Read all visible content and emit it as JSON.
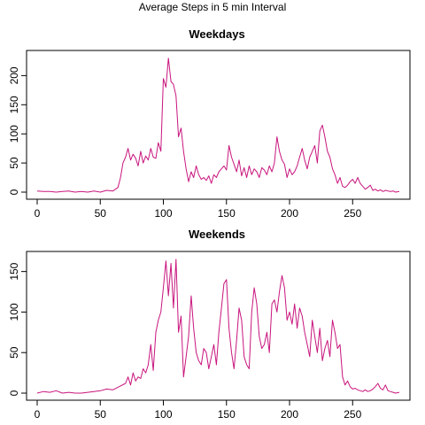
{
  "figure": {
    "title": "Average Steps in 5 min Interval",
    "line_color": "#C8157D"
  },
  "chart_data": [
    {
      "type": "line",
      "title": "Weekdays",
      "xlabel": "",
      "ylabel": "",
      "xlim": [
        0,
        287
      ],
      "ylim": [
        0,
        231
      ],
      "xticks": [
        0,
        50,
        100,
        150,
        200,
        250
      ],
      "yticks": [
        0,
        50,
        100,
        150,
        200
      ],
      "grid": false,
      "series": [
        {
          "x": [
            0,
            5,
            10,
            15,
            20,
            25,
            30,
            35,
            40,
            45,
            50,
            55,
            60,
            62,
            64,
            66,
            68,
            70,
            72,
            74,
            76,
            78,
            80,
            82,
            84,
            86,
            88,
            90,
            92,
            94,
            96,
            98,
            100,
            102,
            104,
            106,
            108,
            110,
            112,
            114,
            116,
            118,
            120,
            122,
            124,
            126,
            128,
            130,
            132,
            134,
            136,
            138,
            140,
            142,
            144,
            146,
            148,
            150,
            152,
            154,
            156,
            158,
            160,
            162,
            164,
            166,
            168,
            170,
            172,
            174,
            176,
            178,
            180,
            182,
            184,
            186,
            188,
            190,
            192,
            194,
            196,
            198,
            200,
            202,
            204,
            206,
            208,
            210,
            212,
            214,
            216,
            218,
            220,
            222,
            224,
            226,
            228,
            230,
            232,
            234,
            236,
            238,
            240,
            242,
            244,
            246,
            248,
            250,
            252,
            254,
            256,
            258,
            260,
            262,
            264,
            266,
            268,
            270,
            272,
            274,
            276,
            278,
            280,
            282,
            284,
            287
          ],
          "y": [
            2,
            1,
            1,
            0,
            1,
            2,
            0,
            1,
            0,
            2,
            0,
            3,
            2,
            5,
            8,
            25,
            50,
            60,
            75,
            55,
            65,
            58,
            45,
            70,
            50,
            62,
            55,
            75,
            60,
            58,
            85,
            70,
            195,
            180,
            230,
            190,
            185,
            165,
            95,
            110,
            70,
            40,
            18,
            35,
            25,
            45,
            30,
            22,
            25,
            20,
            28,
            15,
            30,
            25,
            35,
            40,
            45,
            38,
            80,
            60,
            48,
            35,
            55,
            28,
            42,
            25,
            45,
            30,
            40,
            35,
            25,
            42,
            38,
            30,
            45,
            35,
            50,
            95,
            70,
            55,
            48,
            25,
            40,
            30,
            35,
            45,
            60,
            75,
            55,
            40,
            60,
            70,
            80,
            50,
            105,
            115,
            95,
            70,
            60,
            40,
            30,
            15,
            25,
            10,
            8,
            12,
            18,
            22,
            15,
            25,
            15,
            10,
            5,
            8,
            12,
            3,
            5,
            2,
            4,
            1,
            3,
            2,
            1,
            2,
            0,
            1
          ]
        }
      ]
    },
    {
      "type": "line",
      "title": "Weekends",
      "xlabel": "",
      "ylabel": "",
      "xlim": [
        0,
        287
      ],
      "ylim": [
        0,
        166
      ],
      "xticks": [
        0,
        50,
        100,
        150,
        200,
        250
      ],
      "yticks": [
        0,
        50,
        100,
        150
      ],
      "grid": false,
      "series": [
        {
          "x": [
            0,
            5,
            10,
            15,
            20,
            25,
            30,
            35,
            40,
            45,
            50,
            55,
            60,
            65,
            70,
            72,
            74,
            76,
            78,
            80,
            82,
            84,
            86,
            88,
            90,
            92,
            94,
            96,
            98,
            100,
            102,
            104,
            106,
            108,
            110,
            112,
            114,
            116,
            118,
            120,
            122,
            124,
            126,
            128,
            130,
            132,
            134,
            136,
            138,
            140,
            142,
            144,
            146,
            148,
            150,
            152,
            154,
            156,
            158,
            160,
            162,
            164,
            166,
            168,
            170,
            172,
            174,
            176,
            178,
            180,
            182,
            184,
            186,
            188,
            190,
            192,
            194,
            196,
            198,
            200,
            202,
            204,
            206,
            208,
            210,
            212,
            214,
            216,
            218,
            220,
            222,
            224,
            226,
            228,
            230,
            232,
            234,
            236,
            238,
            240,
            242,
            244,
            246,
            248,
            250,
            252,
            254,
            256,
            258,
            260,
            262,
            264,
            266,
            268,
            270,
            272,
            274,
            276,
            278,
            280,
            282,
            284,
            287
          ],
          "y": [
            0,
            2,
            1,
            3,
            0,
            1,
            0,
            0,
            1,
            2,
            3,
            5,
            4,
            8,
            12,
            20,
            10,
            25,
            15,
            20,
            18,
            30,
            25,
            35,
            60,
            28,
            75,
            90,
            100,
            130,
            163,
            120,
            160,
            105,
            165,
            75,
            95,
            20,
            45,
            70,
            120,
            80,
            50,
            40,
            35,
            55,
            50,
            30,
            45,
            60,
            35,
            75,
            105,
            135,
            140,
            80,
            50,
            30,
            65,
            105,
            90,
            45,
            35,
            30,
            100,
            130,
            110,
            70,
            55,
            60,
            75,
            50,
            110,
            115,
            100,
            125,
            145,
            130,
            90,
            100,
            85,
            110,
            80,
            105,
            95,
            75,
            60,
            45,
            90,
            70,
            50,
            80,
            40,
            55,
            65,
            45,
            90,
            75,
            55,
            60,
            20,
            10,
            15,
            8,
            5,
            6,
            4,
            3,
            2,
            4,
            2,
            3,
            5,
            8,
            12,
            6,
            4,
            10,
            3,
            2,
            1,
            0,
            1
          ]
        }
      ]
    }
  ]
}
